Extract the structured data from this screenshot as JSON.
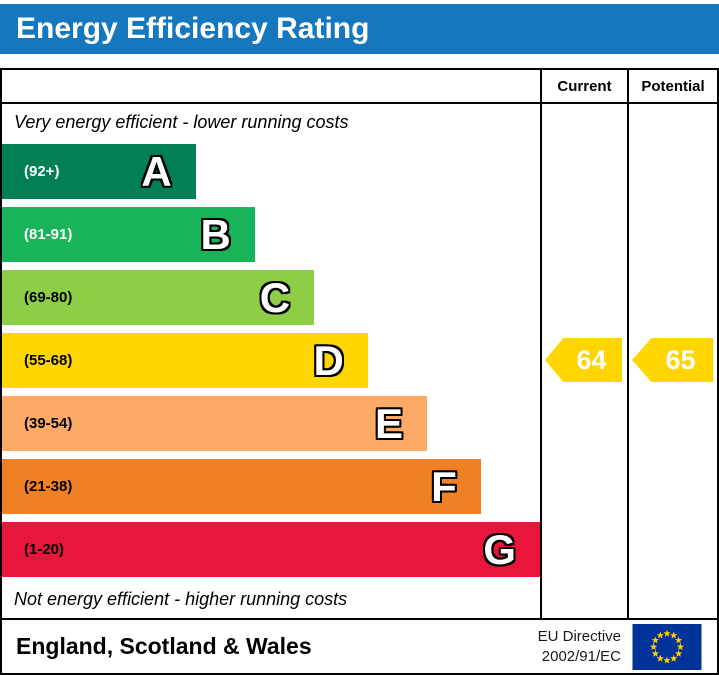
{
  "title": "Energy Efficiency Rating",
  "header": {
    "current": "Current",
    "potential": "Potential"
  },
  "notes": {
    "top": "Very energy efficient - lower running costs",
    "bottom": "Not energy efficient - higher running costs"
  },
  "bands": [
    {
      "letter": "A",
      "range": "(92+)",
      "color": "#008054",
      "width_pct": 36,
      "text_color": "#ffffff"
    },
    {
      "letter": "B",
      "range": "(81-91)",
      "color": "#19b459",
      "width_pct": 47,
      "text_color": "#ffffff"
    },
    {
      "letter": "C",
      "range": "(69-80)",
      "color": "#8dce46",
      "width_pct": 58,
      "text_color": "#000000"
    },
    {
      "letter": "D",
      "range": "(55-68)",
      "color": "#ffd500",
      "width_pct": 68,
      "text_color": "#000000"
    },
    {
      "letter": "E",
      "range": "(39-54)",
      "color": "#fcaa65",
      "width_pct": 79,
      "text_color": "#000000"
    },
    {
      "letter": "F",
      "range": "(21-38)",
      "color": "#ef8023",
      "width_pct": 89,
      "text_color": "#000000"
    },
    {
      "letter": "G",
      "range": "(1-20)",
      "color": "#e9153b",
      "width_pct": 100,
      "text_color": "#000000"
    }
  ],
  "current": {
    "value": "64",
    "band_index": 3,
    "color": "#ffd500"
  },
  "potential": {
    "value": "65",
    "band_index": 3,
    "color": "#ffd500"
  },
  "footer": {
    "region": "England, Scotland & Wales",
    "directive_line1": "EU Directive",
    "directive_line2": "2002/91/EC"
  },
  "chart_data": {
    "type": "bar",
    "title": "Energy Efficiency Rating",
    "categories": [
      "A",
      "B",
      "C",
      "D",
      "E",
      "F",
      "G"
    ],
    "band_ranges": [
      "92+",
      "81-91",
      "69-80",
      "55-68",
      "39-54",
      "21-38",
      "1-20"
    ],
    "band_colors": [
      "#008054",
      "#19b459",
      "#8dce46",
      "#ffd500",
      "#fcaa65",
      "#ef8023",
      "#e9153b"
    ],
    "bar_widths_pct": [
      36,
      47,
      58,
      68,
      79,
      89,
      100
    ],
    "columns": [
      "Current",
      "Potential"
    ],
    "current": 64,
    "potential": 65,
    "current_band": "D",
    "potential_band": "D",
    "annotations": [
      "Very energy efficient - lower running costs",
      "Not energy efficient - higher running costs"
    ],
    "footer": "England, Scotland & Wales",
    "directive": "EU Directive 2002/91/EC"
  }
}
